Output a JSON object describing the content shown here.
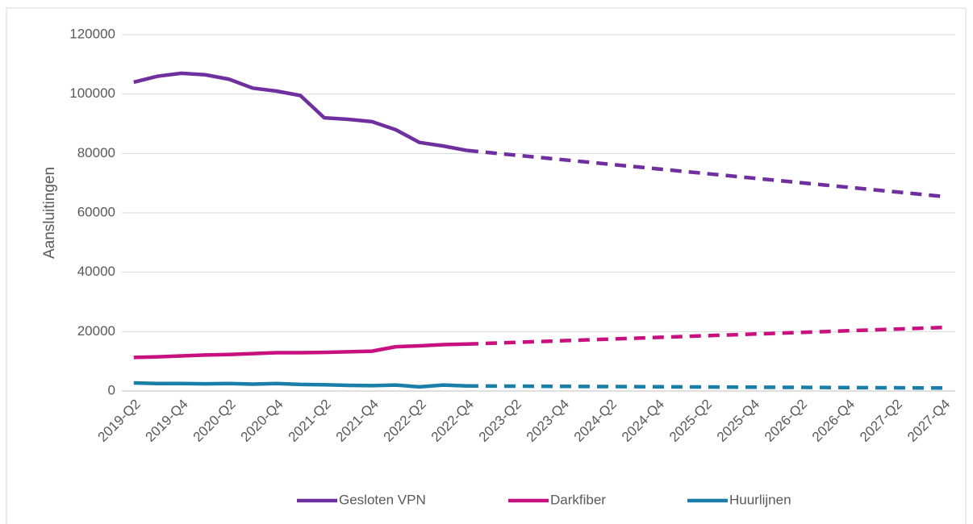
{
  "chart_data": {
    "type": "line",
    "y_label": "Aansluitingen",
    "categories": [
      "2019-Q2",
      null,
      "2019-Q4",
      null,
      "2020-Q2",
      null,
      "2020-Q4",
      null,
      "2021-Q2",
      null,
      "2021-Q4",
      null,
      "2022-Q2",
      null,
      "2022-Q4",
      null,
      "2023-Q2",
      null,
      "2023-Q4",
      null,
      "2024-Q2",
      null,
      "2024-Q4",
      null,
      "2025-Q2",
      null,
      "2025-Q4",
      null,
      "2026-Q2",
      null,
      "2026-Q4",
      null,
      "2027-Q2",
      null,
      "2027-Q4"
    ],
    "dashed_from": "2022-Q4",
    "series": [
      {
        "name": "Gesloten VPN",
        "color": "#6f2f9f",
        "values": [
          104000,
          106000,
          107000,
          106500,
          105000,
          102000,
          101000,
          99500,
          92000,
          91500,
          90700,
          88000,
          83700,
          82500,
          81000,
          80225,
          79450,
          78675,
          77900,
          77125,
          76350,
          75575,
          74800,
          74025,
          73250,
          72475,
          71700,
          70925,
          70150,
          69375,
          68600,
          67825,
          67050,
          66275,
          65500
        ]
      },
      {
        "name": "Darkfiber",
        "color": "#c8117f",
        "values": [
          11300,
          11500,
          11800,
          12100,
          12300,
          12600,
          12900,
          12900,
          13000,
          13200,
          13400,
          14900,
          15200,
          15600,
          15800,
          16080,
          16360,
          16640,
          16920,
          17200,
          17480,
          17760,
          18040,
          18320,
          18600,
          18880,
          19160,
          19440,
          19720,
          20000,
          20280,
          20560,
          20840,
          21120,
          21400
        ]
      },
      {
        "name": "Huurlijnen",
        "color": "#1a7fa8",
        "values": [
          2700,
          2500,
          2500,
          2400,
          2500,
          2300,
          2500,
          2200,
          2100,
          1900,
          1800,
          2000,
          1400,
          2000,
          1700,
          1665,
          1630,
          1595,
          1560,
          1525,
          1490,
          1455,
          1420,
          1385,
          1350,
          1315,
          1280,
          1245,
          1210,
          1175,
          1140,
          1105,
          1070,
          1035,
          1000
        ]
      }
    ],
    "ylim": [
      0,
      120000
    ],
    "yticks": [
      0,
      20000,
      40000,
      60000,
      80000,
      100000,
      120000
    ],
    "grid": true,
    "legend": "bottom"
  }
}
